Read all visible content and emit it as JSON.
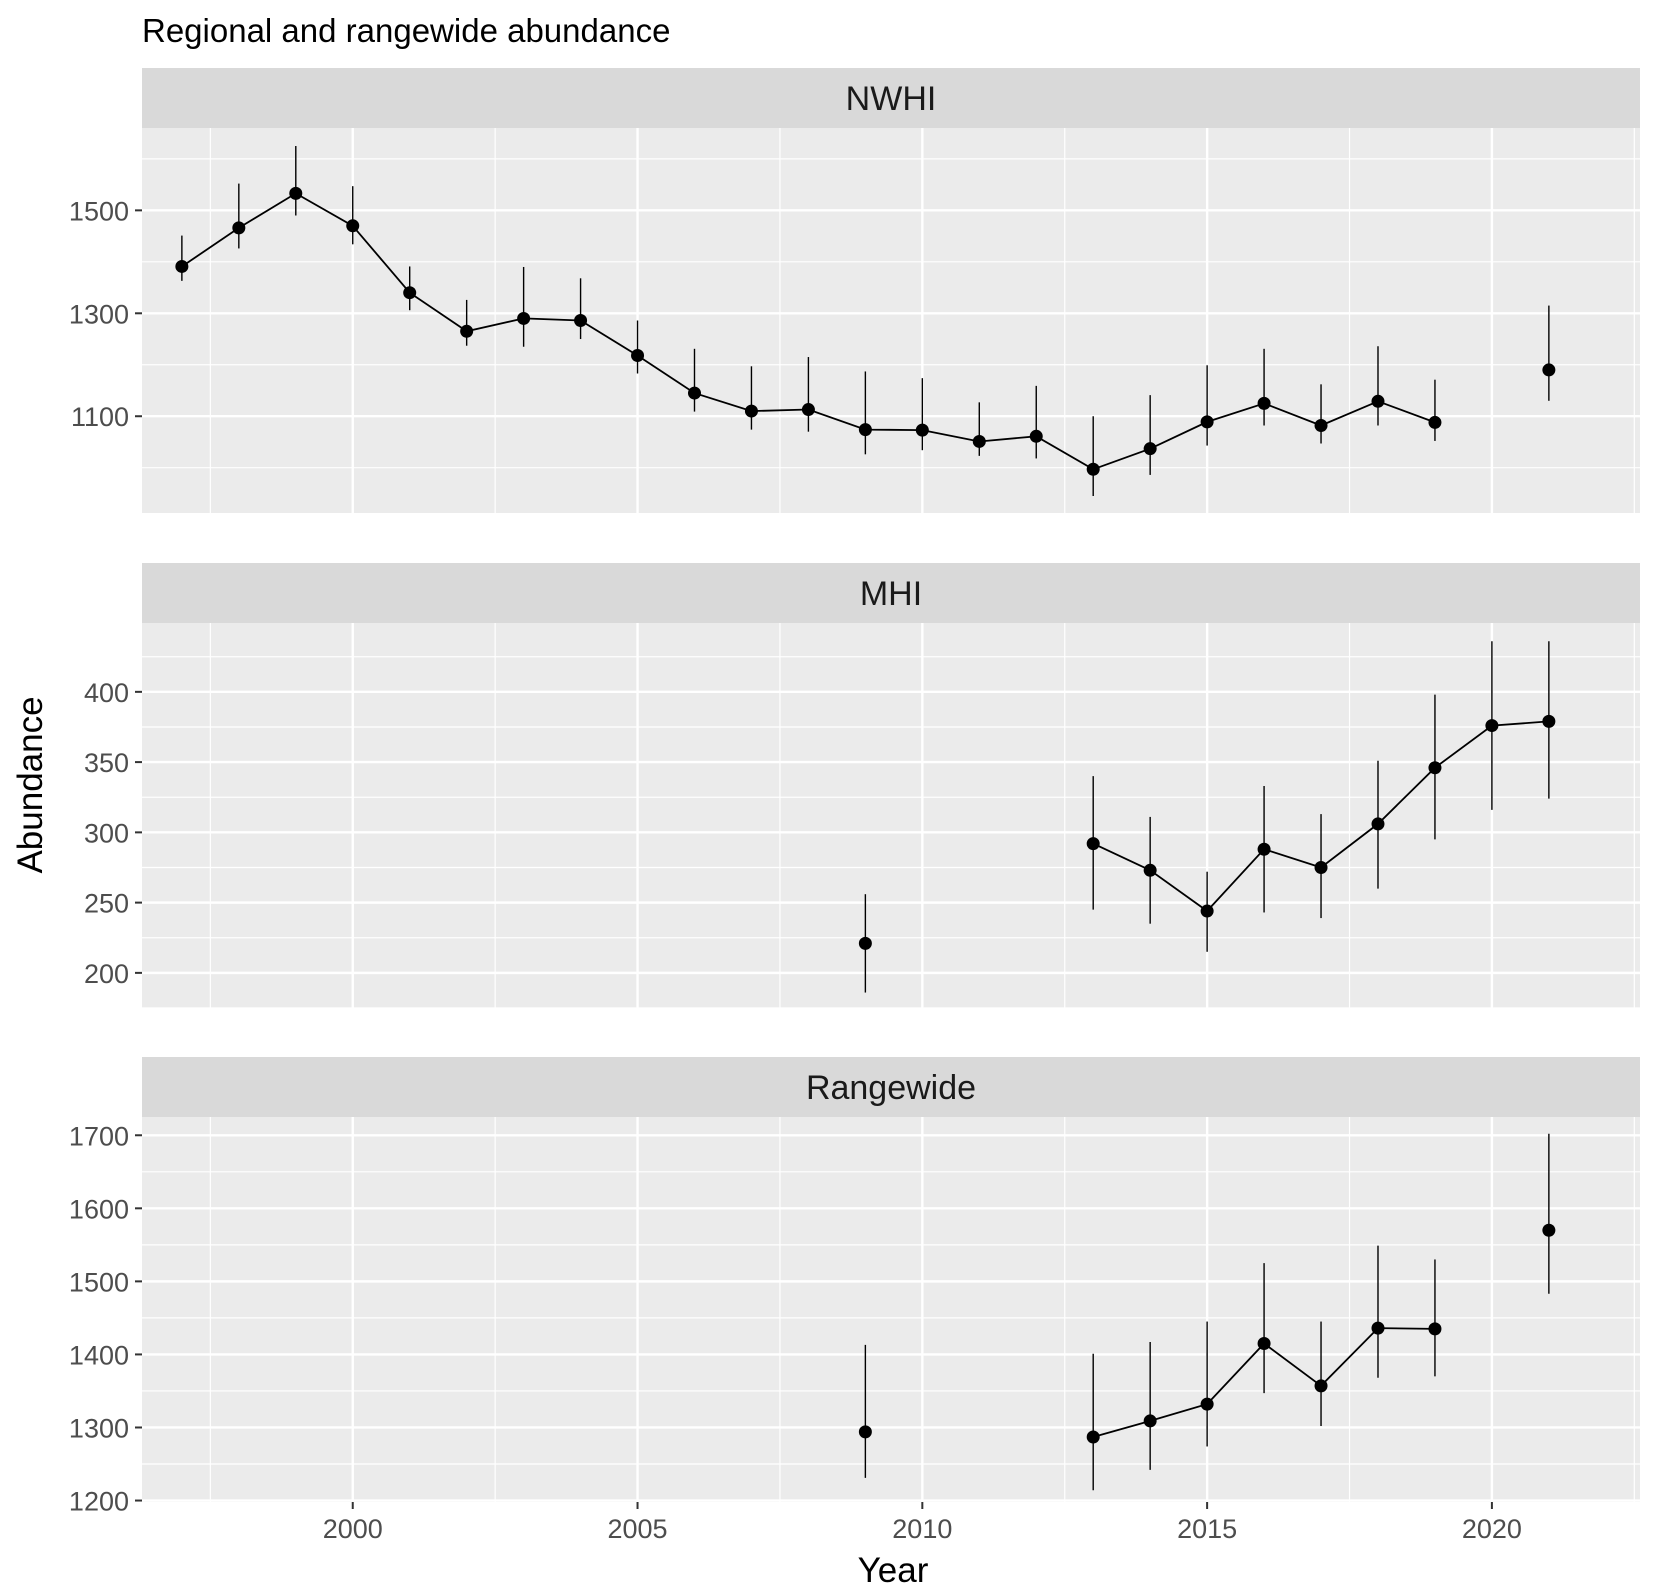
{
  "chart_data": {
    "type": "scatter",
    "title": "Regional and rangewide abundance",
    "xlabel": "Year",
    "ylabel": "Abundance",
    "xlim": [
      1996.3,
      2022.6
    ],
    "x_ticks": [
      2000,
      2005,
      2010,
      2015,
      2020
    ],
    "x_tick_labels": [
      "2000",
      "2005",
      "2010",
      "2015",
      "2020"
    ],
    "grid": true,
    "legend": "none",
    "colors": {
      "background": "#ffffff",
      "panel": "#ebebeb",
      "strip": "#d9d9d9",
      "grid": "#ffffff",
      "series": "#000000",
      "text": "#1a1a1a",
      "tick_text": "#4d4d4d"
    },
    "panels": [
      {
        "strip_label": "NWHI",
        "ylim": [
          912,
          1660
        ],
        "y_ticks": [
          1100,
          1300,
          1500
        ],
        "y_tick_labels": [
          "1100",
          "1300",
          "1500"
        ],
        "points": [
          {
            "year": 1997,
            "value": 1391,
            "lower": 1363,
            "upper": 1451
          },
          {
            "year": 1998,
            "value": 1466,
            "lower": 1426,
            "upper": 1552
          },
          {
            "year": 1999,
            "value": 1533,
            "lower": 1490,
            "upper": 1625
          },
          {
            "year": 2000,
            "value": 1470,
            "lower": 1434,
            "upper": 1547
          },
          {
            "year": 2001,
            "value": 1340,
            "lower": 1306,
            "upper": 1391
          },
          {
            "year": 2002,
            "value": 1265,
            "lower": 1237,
            "upper": 1326
          },
          {
            "year": 2003,
            "value": 1290,
            "lower": 1235,
            "upper": 1390
          },
          {
            "year": 2004,
            "value": 1286,
            "lower": 1250,
            "upper": 1368
          },
          {
            "year": 2005,
            "value": 1218,
            "lower": 1183,
            "upper": 1286
          },
          {
            "year": 2006,
            "value": 1145,
            "lower": 1109,
            "upper": 1231
          },
          {
            "year": 2007,
            "value": 1110,
            "lower": 1074,
            "upper": 1197
          },
          {
            "year": 2008,
            "value": 1113,
            "lower": 1070,
            "upper": 1215
          },
          {
            "year": 2009,
            "value": 1074,
            "lower": 1026,
            "upper": 1187
          },
          {
            "year": 2010,
            "value": 1073,
            "lower": 1034,
            "upper": 1174
          },
          {
            "year": 2011,
            "value": 1051,
            "lower": 1023,
            "upper": 1127
          },
          {
            "year": 2012,
            "value": 1061,
            "lower": 1018,
            "upper": 1159
          },
          {
            "year": 2013,
            "value": 997,
            "lower": 945,
            "upper": 1100
          },
          {
            "year": 2014,
            "value": 1037,
            "lower": 986,
            "upper": 1141
          },
          {
            "year": 2015,
            "value": 1089,
            "lower": 1043,
            "upper": 1199
          },
          {
            "year": 2016,
            "value": 1125,
            "lower": 1082,
            "upper": 1231
          },
          {
            "year": 2017,
            "value": 1082,
            "lower": 1047,
            "upper": 1162
          },
          {
            "year": 2018,
            "value": 1129,
            "lower": 1082,
            "upper": 1236
          },
          {
            "year": 2019,
            "value": 1088,
            "lower": 1052,
            "upper": 1171
          },
          {
            "year": 2021,
            "value": 1190,
            "lower": 1130,
            "upper": 1315
          }
        ],
        "line_segments": [
          [
            1997,
            2019
          ]
        ]
      },
      {
        "strip_label": "MHI",
        "ylim": [
          175,
          449
        ],
        "y_ticks": [
          200,
          250,
          300,
          350,
          400
        ],
        "y_tick_labels": [
          "200",
          "250",
          "300",
          "350",
          "400"
        ],
        "points": [
          {
            "year": 2009,
            "value": 221,
            "lower": 186,
            "upper": 256
          },
          {
            "year": 2013,
            "value": 292,
            "lower": 245,
            "upper": 340
          },
          {
            "year": 2014,
            "value": 273,
            "lower": 235,
            "upper": 311
          },
          {
            "year": 2015,
            "value": 244,
            "lower": 215,
            "upper": 272
          },
          {
            "year": 2016,
            "value": 288,
            "lower": 243,
            "upper": 333
          },
          {
            "year": 2017,
            "value": 275,
            "lower": 239,
            "upper": 313
          },
          {
            "year": 2018,
            "value": 306,
            "lower": 260,
            "upper": 351
          },
          {
            "year": 2019,
            "value": 346,
            "lower": 295,
            "upper": 398
          },
          {
            "year": 2020,
            "value": 376,
            "lower": 316,
            "upper": 436
          },
          {
            "year": 2021,
            "value": 379,
            "lower": 324,
            "upper": 436
          }
        ],
        "line_segments": [
          [
            2013,
            2021
          ]
        ]
      },
      {
        "strip_label": "Rangewide",
        "ylim": [
          1198,
          1725
        ],
        "y_ticks": [
          1200,
          1300,
          1400,
          1500,
          1600,
          1700
        ],
        "y_tick_labels": [
          "1200",
          "1300",
          "1400",
          "1500",
          "1600",
          "1700"
        ],
        "points": [
          {
            "year": 2009,
            "value": 1294,
            "lower": 1231,
            "upper": 1413
          },
          {
            "year": 2013,
            "value": 1287,
            "lower": 1214,
            "upper": 1401
          },
          {
            "year": 2014,
            "value": 1309,
            "lower": 1242,
            "upper": 1417
          },
          {
            "year": 2015,
            "value": 1332,
            "lower": 1274,
            "upper": 1445
          },
          {
            "year": 2016,
            "value": 1415,
            "lower": 1347,
            "upper": 1525
          },
          {
            "year": 2017,
            "value": 1357,
            "lower": 1302,
            "upper": 1445
          },
          {
            "year": 2018,
            "value": 1436,
            "lower": 1368,
            "upper": 1549
          },
          {
            "year": 2019,
            "value": 1435,
            "lower": 1370,
            "upper": 1530
          },
          {
            "year": 2021,
            "value": 1570,
            "lower": 1483,
            "upper": 1702
          }
        ],
        "line_segments": [
          [
            2013,
            2019
          ]
        ]
      }
    ]
  }
}
